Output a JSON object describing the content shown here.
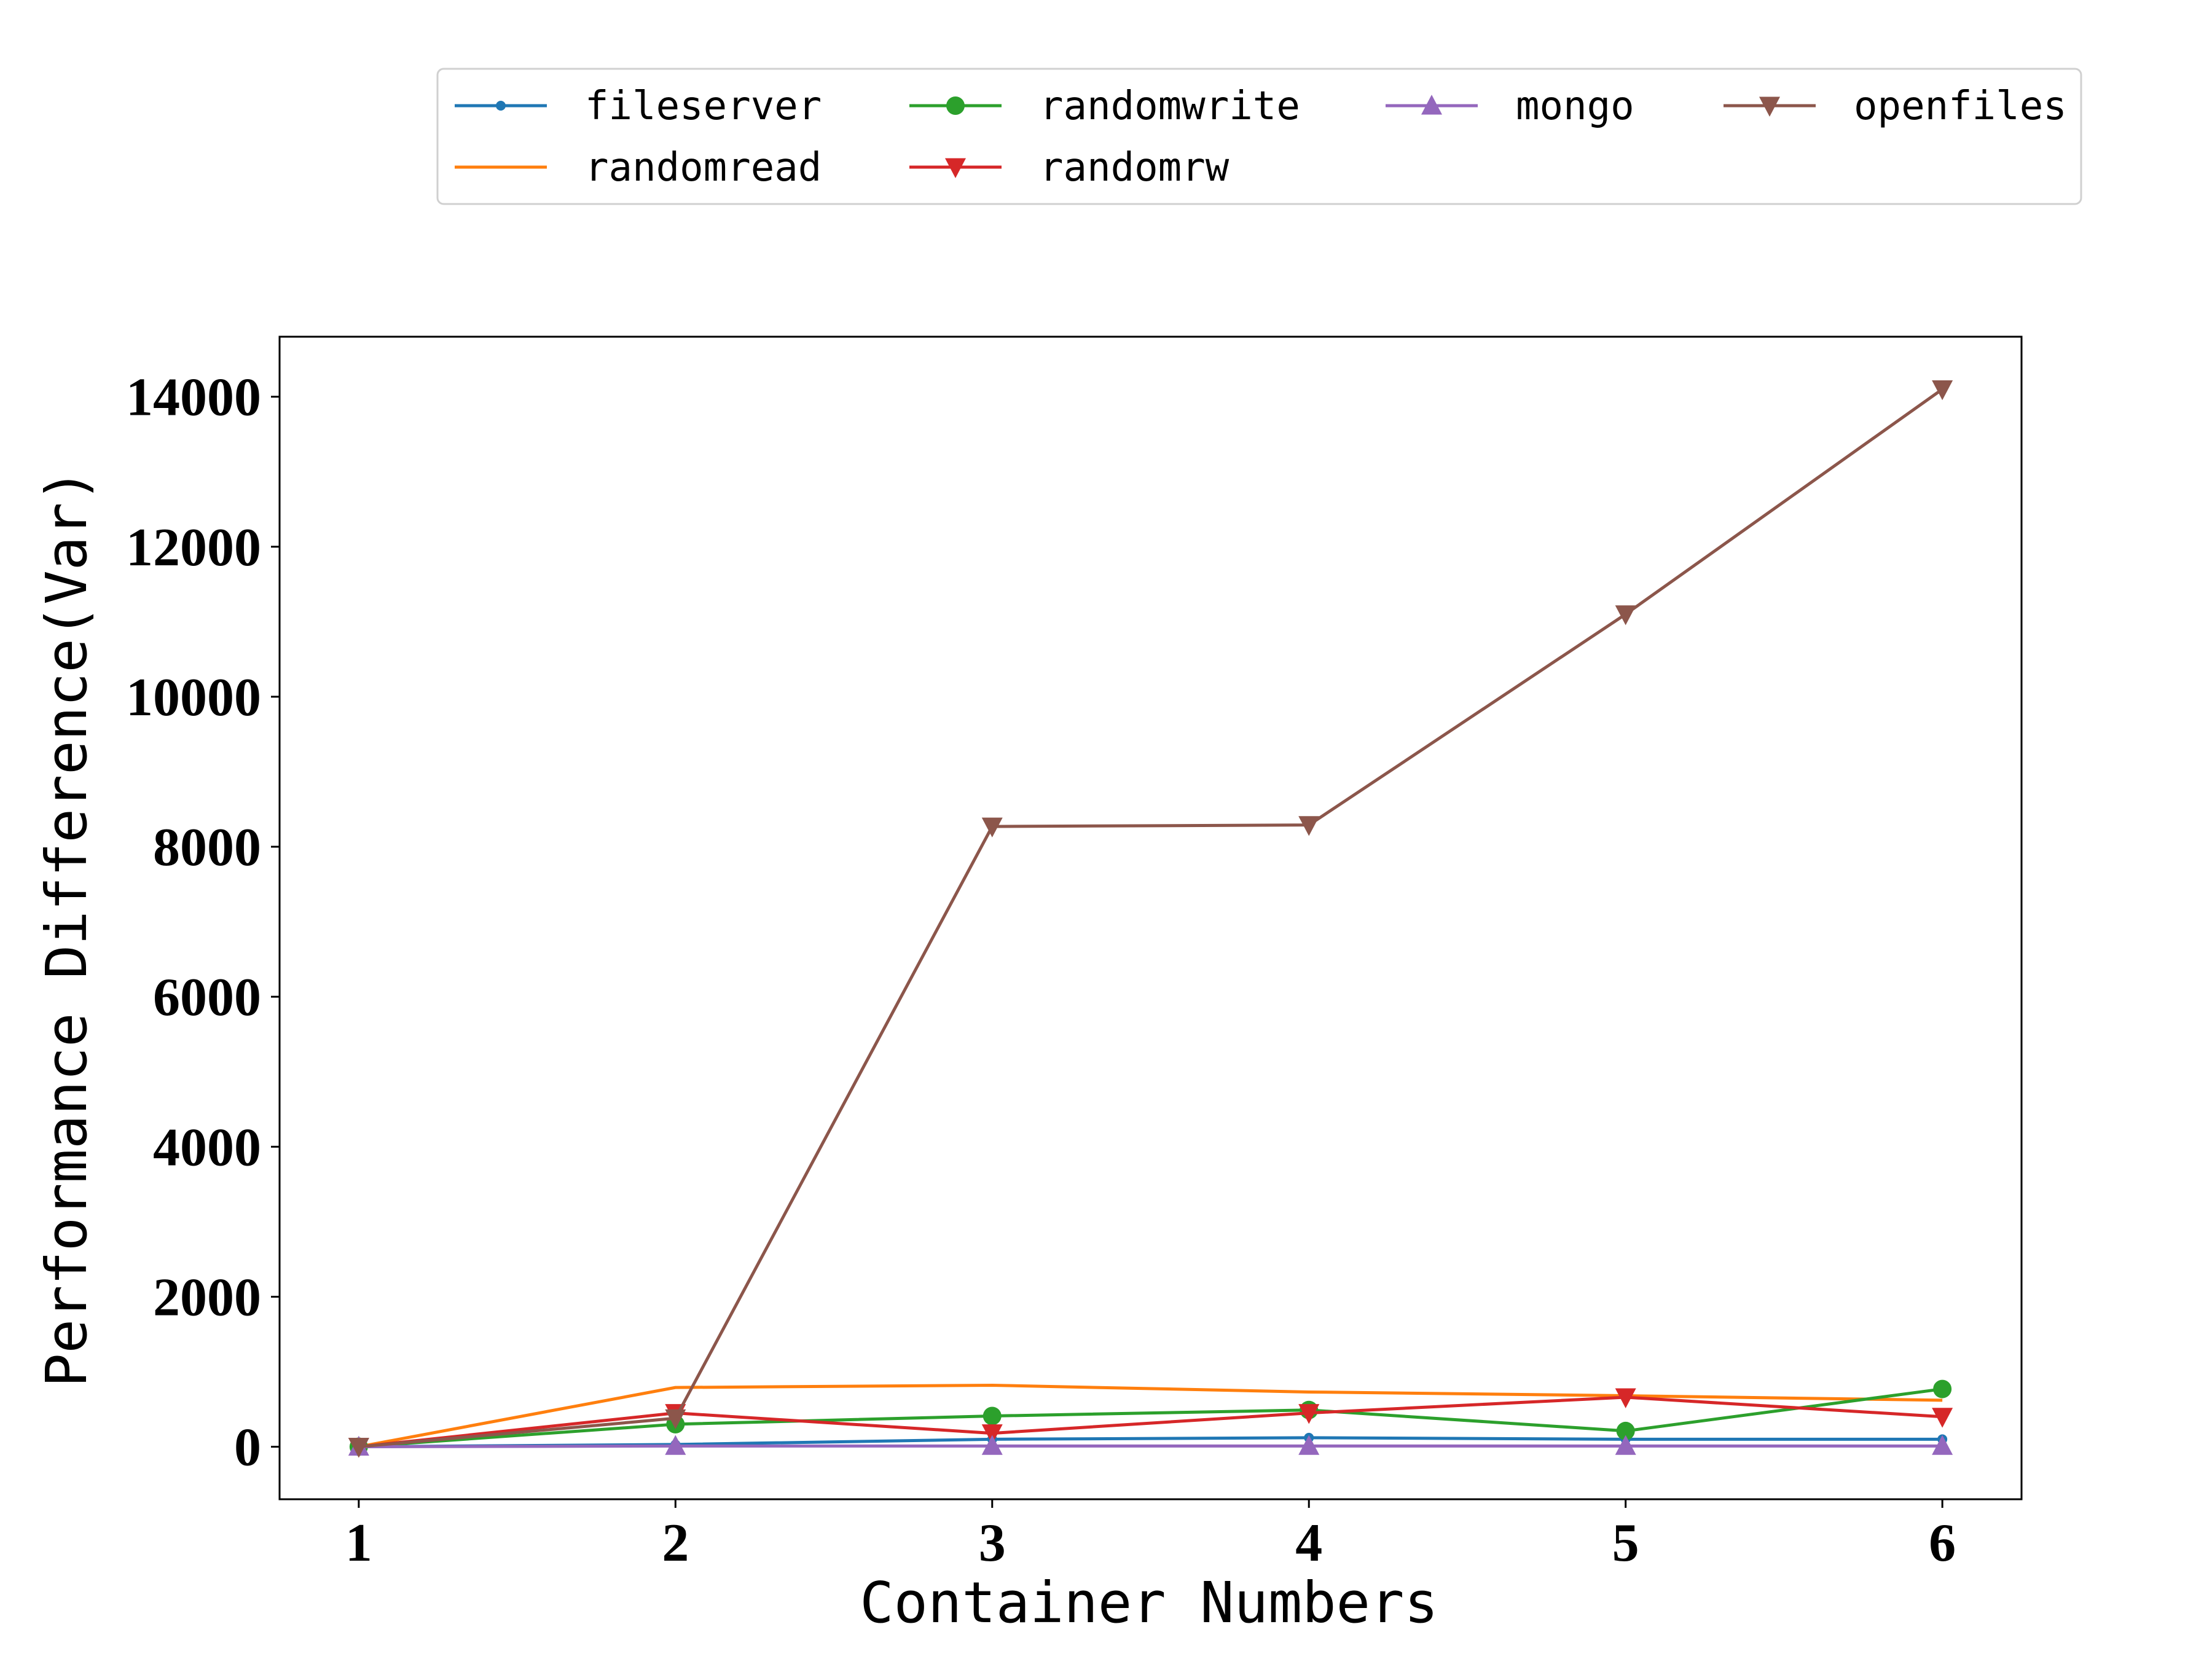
{
  "chart_data": {
    "type": "line",
    "title": "",
    "xlabel": "Container Numbers",
    "ylabel": "Performance Difference(Var)",
    "x": [
      1,
      2,
      3,
      4,
      5,
      6
    ],
    "xticks": [
      "1",
      "2",
      "3",
      "4",
      "5",
      "6"
    ],
    "yticks": [
      "0",
      "2000",
      "4000",
      "6000",
      "8000",
      "10000",
      "12000",
      "14000"
    ],
    "xlim": [
      0.75,
      6.25
    ],
    "ylim": [
      -700,
      14800
    ],
    "grid": false,
    "legend_position": "top, above plot, 4 columns",
    "series": [
      {
        "name": "fileserver",
        "color": "#1f77b4",
        "marker": "small-circle",
        "values": [
          0,
          30,
          100,
          120,
          100,
          100
        ]
      },
      {
        "name": "randomread",
        "color": "#ff7f0e",
        "marker": "none",
        "values": [
          0,
          790,
          820,
          730,
          680,
          620
        ]
      },
      {
        "name": "randomwrite",
        "color": "#2ca02c",
        "marker": "circle",
        "values": [
          0,
          300,
          410,
          490,
          210,
          770
        ]
      },
      {
        "name": "randomrw",
        "color": "#d62728",
        "marker": "triangle-down",
        "values": [
          0,
          450,
          180,
          450,
          660,
          400
        ]
      },
      {
        "name": "mongo",
        "color": "#9467bd",
        "marker": "triangle-up",
        "values": [
          0,
          10,
          10,
          10,
          10,
          10
        ]
      },
      {
        "name": "openfiles",
        "color": "#8c564b",
        "marker": "triangle-down",
        "values": [
          0,
          380,
          8270,
          8290,
          11100,
          14100
        ]
      }
    ]
  }
}
